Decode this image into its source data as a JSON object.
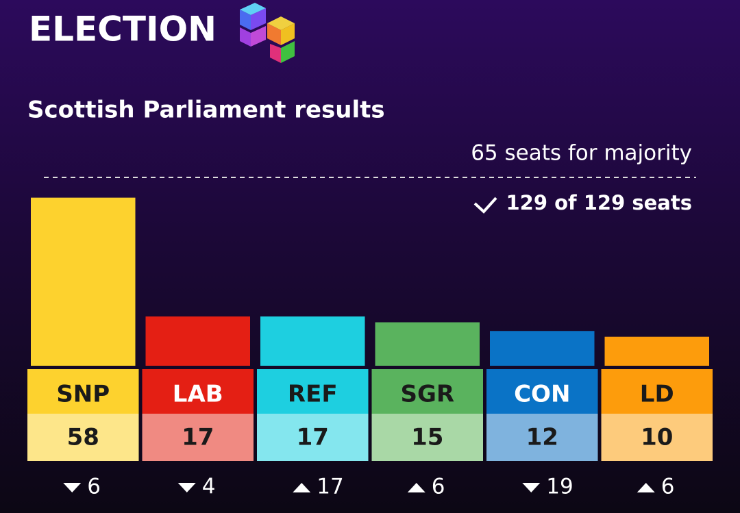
{
  "chart_data": {
    "type": "bar",
    "brand": "ELECTION",
    "title": "Scottish Parliament results",
    "majority": 65,
    "majority_label": "65 seats for majority",
    "status": "129 of 129 seats",
    "categories": [
      "SNP",
      "LAB",
      "REF",
      "SGR",
      "CON",
      "LD"
    ],
    "values": [
      58,
      17,
      17,
      15,
      12,
      10
    ],
    "colors": [
      "#fdd22e",
      "#e41f14",
      "#1ecfe0",
      "#5ab35e",
      "#0a73c6",
      "#fd9c0c"
    ],
    "value_colors": [
      "#fde68a",
      "#f08a82",
      "#84e6ee",
      "#a9d8a6",
      "#7fb3de",
      "#fdcb7c"
    ],
    "label_text_colors": [
      "#1a1a1a",
      "#ffffff",
      "#1a1a1a",
      "#1a1a1a",
      "#ffffff",
      "#1a1a1a"
    ],
    "changes": [
      -6,
      -4,
      17,
      6,
      -19,
      6
    ],
    "change_labels": [
      "6",
      "4",
      "17",
      "6",
      "19",
      "6"
    ]
  }
}
